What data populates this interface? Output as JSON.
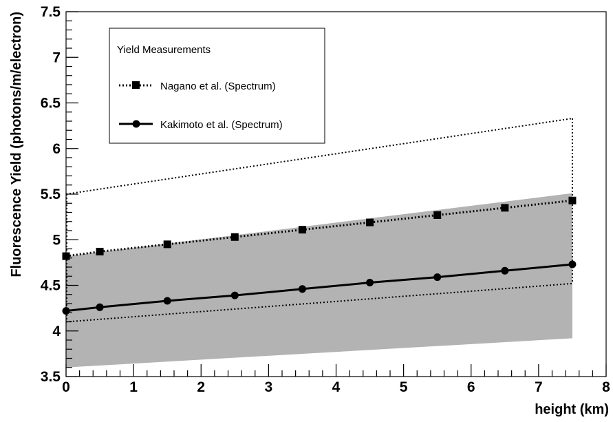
{
  "chart_data": {
    "type": "line",
    "title": "",
    "xlabel": "height (km)",
    "ylabel": "Fluorescence Yield (photons/m/electron)",
    "xlim": [
      0,
      8
    ],
    "ylim": [
      3.5,
      7.5
    ],
    "grid": false,
    "legend": {
      "title": "Yield Measurements",
      "placement": "top-left",
      "entries": [
        "Nagano et al. (Spectrum)",
        "Kakimoto et al. (Spectrum)"
      ]
    },
    "x_ticks": [
      "0",
      "1",
      "2",
      "3",
      "4",
      "5",
      "6",
      "7",
      "8"
    ],
    "y_ticks": [
      "3.5",
      "4",
      "4.5",
      "5",
      "5.5",
      "6",
      "6.5",
      "7",
      "7.5"
    ],
    "series": [
      {
        "name": "Nagano et al. (Spectrum)",
        "marker": "square",
        "line": "dotted",
        "x": [
          0,
          0.5,
          1.5,
          2.5,
          3.5,
          4.5,
          5.5,
          6.5,
          7.5
        ],
        "y": [
          4.82,
          4.87,
          4.95,
          5.03,
          5.11,
          5.19,
          5.27,
          5.35,
          5.43
        ]
      },
      {
        "name": "Kakimoto et al. (Spectrum)",
        "marker": "circle",
        "line": "solid",
        "x": [
          0,
          0.5,
          1.5,
          2.5,
          3.5,
          4.5,
          5.5,
          6.5,
          7.5
        ],
        "y": [
          4.22,
          4.26,
          4.33,
          4.39,
          4.46,
          4.53,
          4.59,
          4.66,
          4.73
        ]
      }
    ],
    "nagano_band": {
      "x": [
        0,
        7.5
      ],
      "upper": [
        5.5,
        6.33
      ],
      "lower": [
        4.1,
        4.52
      ],
      "style": "dotted"
    },
    "kakimoto_band": {
      "x": [
        0,
        7.5
      ],
      "upper": [
        4.82,
        5.51
      ],
      "lower": [
        3.6,
        3.92
      ],
      "color": "#b3b3b3"
    },
    "colors": {
      "band_fill": "#b3b3b3",
      "line": "#000000",
      "background": "#ffffff"
    }
  }
}
